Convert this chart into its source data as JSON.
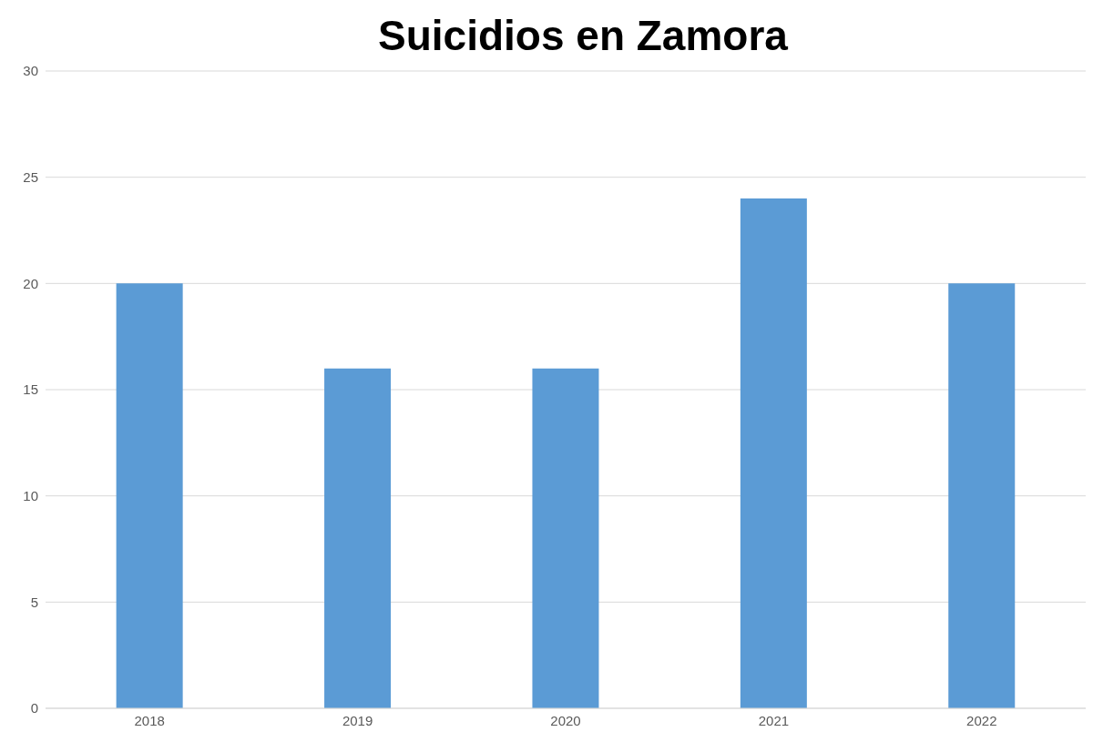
{
  "chart_data": {
    "type": "bar",
    "title": "Suicidios en Zamora",
    "categories": [
      "2018",
      "2019",
      "2020",
      "2021",
      "2022"
    ],
    "values": [
      20,
      16,
      16,
      24,
      20
    ],
    "color": "#5b9bd5",
    "ylim": [
      0,
      30
    ],
    "yticks": [
      0,
      5,
      10,
      15,
      20,
      25,
      30
    ],
    "grid": "y"
  }
}
